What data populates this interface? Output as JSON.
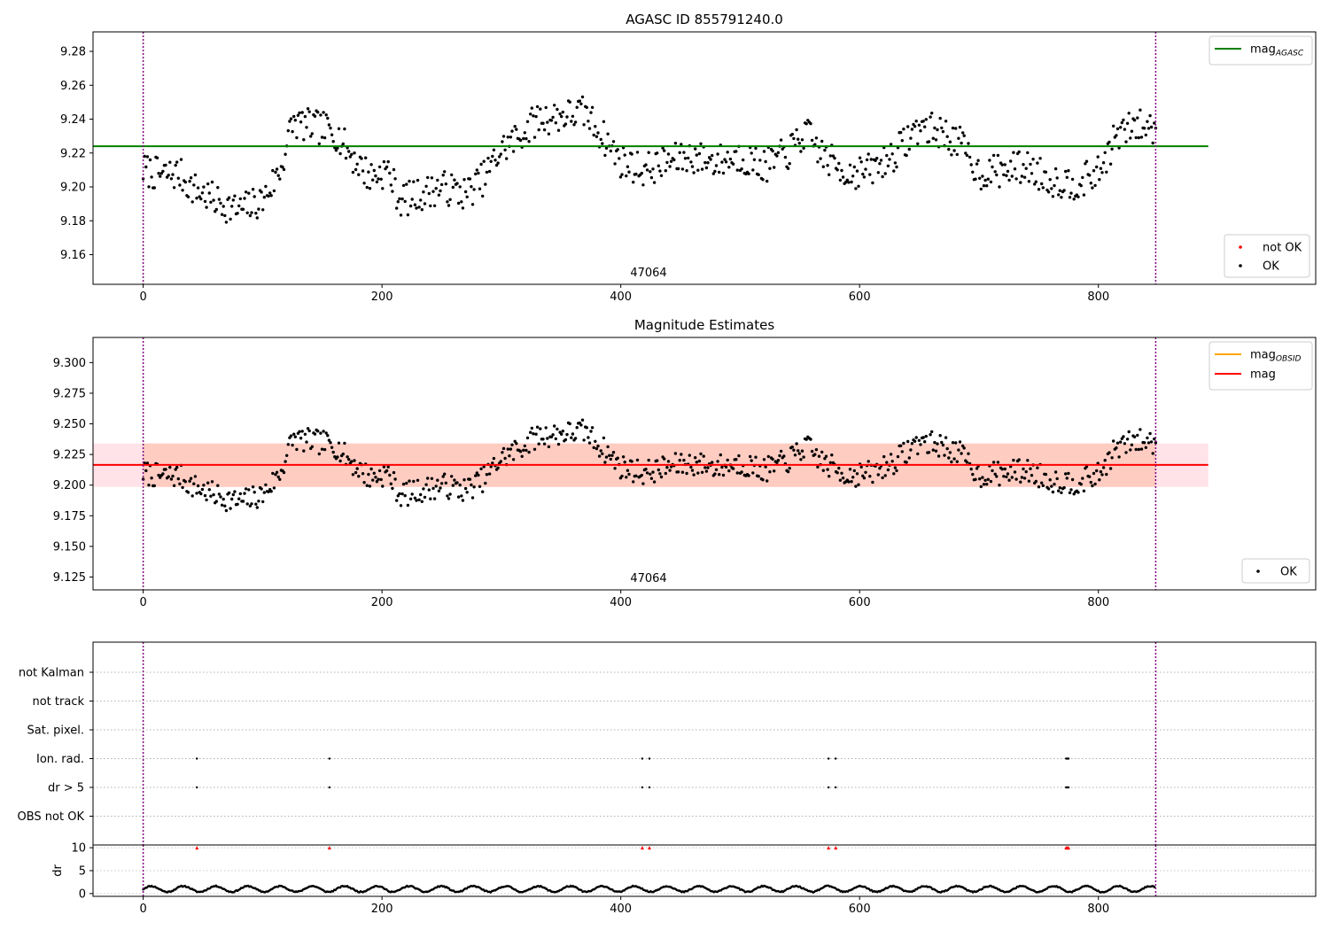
{
  "colors": {
    "ok": "#000000",
    "not_ok": "#ff0000",
    "mag_agasc": "#008000",
    "mag_obsid": "#ffa500",
    "mag": "#ff0000",
    "band_outer": "#ffc0cb",
    "band_inner": "#ffa07a",
    "boundary": "#800080"
  },
  "chart_data": [
    {
      "type": "scatter",
      "title": "AGASC ID 855791240.0",
      "xlim": [
        -42,
        982
      ],
      "ylim": [
        9.1425,
        9.2915
      ],
      "x_ticks": [
        0,
        200,
        400,
        600,
        800
      ],
      "x_tick_labels": [
        "0",
        "200",
        "400",
        "600",
        "800"
      ],
      "y_ticks": [
        9.16,
        9.18,
        9.2,
        9.22,
        9.24,
        9.26,
        9.28
      ],
      "y_tick_labels": [
        "9.16",
        "9.18",
        "9.20",
        "9.22",
        "9.24",
        "9.26",
        "9.28"
      ],
      "obsid_label": "47064",
      "obsid_boundaries": [
        0,
        848
      ],
      "hline": {
        "name": "mag_AGASC",
        "y": 9.224,
        "x_range": [
          -42,
          892
        ]
      },
      "legend_lines": {
        "items": [
          {
            "label": "mag",
            "sub": "AGASC"
          }
        ],
        "position": "upper right"
      },
      "legend_points": {
        "items": [
          {
            "label": "not OK"
          },
          {
            "label": "OK"
          }
        ],
        "position": "lower right"
      },
      "series": [
        {
          "name": "OK",
          "anchors_x": [
            0,
            15,
            30,
            40,
            60,
            80,
            100,
            115,
            125,
            140,
            160,
            175,
            190,
            205,
            215,
            230,
            250,
            270,
            285,
            300,
            315,
            330,
            350,
            370,
            385,
            400,
            420,
            440,
            460,
            480,
            500,
            520,
            540,
            555,
            570,
            590,
            610,
            630,
            650,
            670,
            685,
            700,
            720,
            740,
            760,
            780,
            800,
            815,
            830,
            848
          ],
          "anchors_y": [
            9.21,
            9.207,
            9.208,
            9.2,
            9.192,
            9.186,
            9.192,
            9.21,
            9.238,
            9.236,
            9.233,
            9.218,
            9.206,
            9.21,
            9.192,
            9.195,
            9.2,
            9.196,
            9.205,
            9.222,
            9.23,
            9.24,
            9.242,
            9.244,
            9.23,
            9.215,
            9.21,
            9.215,
            9.218,
            9.215,
            9.218,
            9.212,
            9.22,
            9.232,
            9.218,
            9.208,
            9.21,
            9.22,
            9.236,
            9.232,
            9.225,
            9.208,
            9.21,
            9.212,
            9.204,
            9.202,
            9.208,
            9.23,
            9.236,
            9.235
          ],
          "n": 720,
          "noise": 0.01,
          "seed": 7
        }
      ]
    },
    {
      "type": "scatter",
      "title": "Magnitude Estimates",
      "xlim": [
        -42,
        982
      ],
      "ylim": [
        9.1145,
        9.3205
      ],
      "x_ticks": [
        0,
        200,
        400,
        600,
        800
      ],
      "x_tick_labels": [
        "0",
        "200",
        "400",
        "600",
        "800"
      ],
      "y_ticks": [
        9.125,
        9.15,
        9.175,
        9.2,
        9.225,
        9.25,
        9.275,
        9.3
      ],
      "y_tick_labels": [
        "9.125",
        "9.150",
        "9.175",
        "9.200",
        "9.225",
        "9.250",
        "9.275",
        "9.300"
      ],
      "obsid_label": "47064",
      "obsid_boundaries": [
        0,
        848
      ],
      "hline": {
        "name": "mag",
        "y": 9.2165,
        "x_range": [
          -42,
          892
        ]
      },
      "band_outer": {
        "y0": 9.1985,
        "y1": 9.234,
        "x_range": [
          -42,
          892
        ]
      },
      "band_inner": {
        "y0": 9.1985,
        "y1": 9.234,
        "x_range": [
          0,
          848
        ]
      },
      "legend_lines": {
        "items": [
          {
            "label": "mag",
            "sub": "OBSID"
          },
          {
            "label": "mag",
            "sub": ""
          }
        ],
        "position": "upper right"
      },
      "legend_points": {
        "items": [
          {
            "label": "OK"
          }
        ],
        "position": "lower right"
      },
      "series": [
        {
          "name": "OK",
          "anchors_x": [
            0,
            15,
            30,
            40,
            60,
            80,
            100,
            115,
            125,
            140,
            160,
            175,
            190,
            205,
            215,
            230,
            250,
            270,
            285,
            300,
            315,
            330,
            350,
            370,
            385,
            400,
            420,
            440,
            460,
            480,
            500,
            520,
            540,
            555,
            570,
            590,
            610,
            630,
            650,
            670,
            685,
            700,
            720,
            740,
            760,
            780,
            800,
            815,
            830,
            848
          ],
          "anchors_y": [
            9.21,
            9.207,
            9.208,
            9.2,
            9.192,
            9.186,
            9.192,
            9.21,
            9.238,
            9.236,
            9.233,
            9.218,
            9.206,
            9.21,
            9.192,
            9.195,
            9.2,
            9.196,
            9.205,
            9.222,
            9.23,
            9.24,
            9.242,
            9.244,
            9.23,
            9.215,
            9.21,
            9.215,
            9.218,
            9.215,
            9.218,
            9.212,
            9.22,
            9.232,
            9.218,
            9.208,
            9.21,
            9.22,
            9.236,
            9.232,
            9.225,
            9.208,
            9.21,
            9.212,
            9.204,
            9.202,
            9.208,
            9.23,
            9.236,
            9.235
          ],
          "n": 720,
          "noise": 0.01,
          "seed": 7
        }
      ]
    },
    {
      "type": "scatter",
      "title": "",
      "xlim": [
        -42,
        982
      ],
      "flag_rows": [
        "not Kalman",
        "not track",
        "Sat. pixel.",
        "Ion. rad.",
        "dr > 5",
        "OBS not OK"
      ],
      "flags": {
        "Ion. rad.": [
          45,
          156,
          418,
          424,
          574,
          580,
          773,
          774,
          775
        ],
        "dr > 5": [
          45,
          156,
          418,
          424,
          574,
          580,
          773,
          774,
          775
        ]
      },
      "obsid_boundaries": [
        0,
        848
      ],
      "dr": {
        "ylabel": "dr",
        "ylim": [
          -0.6,
          10.6
        ],
        "y_ticks": [
          0,
          5,
          10
        ],
        "y_tick_labels": [
          "0",
          "5",
          "10"
        ],
        "x_ticks": [
          0,
          200,
          400,
          600,
          800
        ],
        "x_tick_labels": [
          "0",
          "200",
          "400",
          "600",
          "800"
        ],
        "outliers_x": [
          45,
          156,
          418,
          424,
          574,
          580,
          773,
          774,
          775
        ],
        "outliers_y": 10,
        "n": 848,
        "baseline": 1.0,
        "amplitude": 0.7,
        "period": 27
      }
    }
  ]
}
